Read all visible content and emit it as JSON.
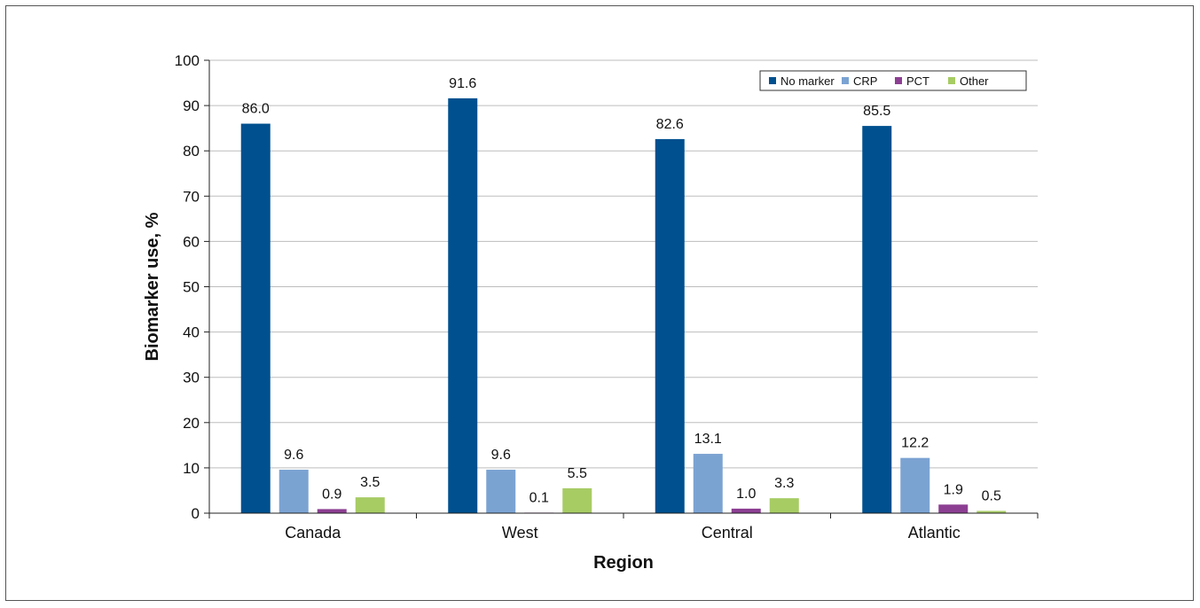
{
  "chart_data": {
    "type": "bar",
    "categories": [
      "Canada",
      "West",
      "Central",
      "Atlantic"
    ],
    "series": [
      {
        "name": "No marker",
        "values": [
          86.0,
          91.6,
          82.6,
          85.5
        ],
        "labels": [
          "86.0",
          "91.6",
          "82.6",
          "85.5"
        ],
        "color": "#00508f"
      },
      {
        "name": "CRP",
        "values": [
          9.6,
          9.6,
          13.1,
          12.2
        ],
        "labels": [
          "9.6",
          "9.6",
          "13.1",
          "12.2"
        ],
        "color": "#7ba3d2"
      },
      {
        "name": "PCT",
        "values": [
          0.9,
          0.1,
          1.0,
          1.9
        ],
        "labels": [
          "0.9",
          "0.1",
          "1.0",
          "1.9"
        ],
        "color": "#8c3f92"
      },
      {
        "name": "Other",
        "values": [
          3.5,
          5.5,
          3.3,
          0.5
        ],
        "labels": [
          "3.5",
          "5.5",
          "3.3",
          "0.5"
        ],
        "color": "#a7cc64"
      }
    ],
    "xlabel": "Region",
    "ylabel": "Biomarker use, %",
    "ylim": [
      0,
      100
    ],
    "yticks": [
      "0",
      "10",
      "20",
      "30",
      "40",
      "50",
      "60",
      "70",
      "80",
      "90",
      "100"
    ],
    "grid": true,
    "legend_position": "top-right"
  }
}
